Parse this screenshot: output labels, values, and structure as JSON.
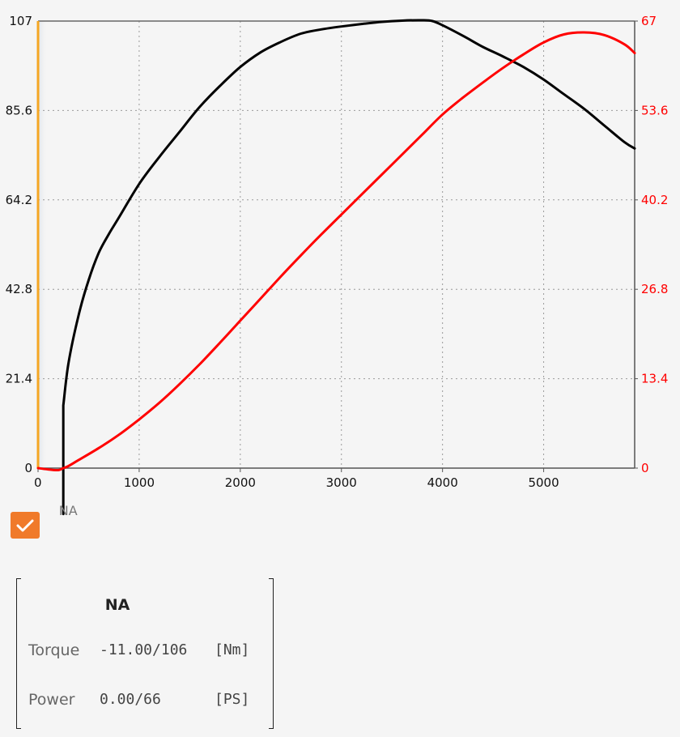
{
  "chart_data": {
    "type": "line",
    "title": "",
    "xlabel": "",
    "ylabel_left": "",
    "ylabel_right": "",
    "xlim": [
      0,
      5900
    ],
    "ylim_left": [
      0,
      107
    ],
    "ylim_right": [
      0,
      67
    ],
    "x_ticks": [
      "0",
      "1000",
      "2000",
      "3000",
      "4000",
      "5000"
    ],
    "y_ticks_left": [
      "0",
      "21.4",
      "42.8",
      "64.2",
      "85.6",
      "107"
    ],
    "y_ticks_right": [
      "0",
      "13.4",
      "26.8",
      "40.2",
      "53.6",
      "67"
    ],
    "grid": true,
    "marker": {
      "x": 250,
      "label": "NA"
    },
    "series": [
      {
        "axis": "left",
        "color": "#000000",
        "x": [
          250,
          250,
          300,
          400,
          500,
          600,
          700,
          800,
          1000,
          1200,
          1400,
          1600,
          1800,
          2000,
          2200,
          2400,
          2600,
          2800,
          3000,
          3200,
          3400,
          3600,
          3800,
          3900,
          4000,
          4200,
          4400,
          4600,
          4800,
          5000,
          5200,
          5400,
          5600,
          5800,
          5900
        ],
        "y": [
          -11,
          15,
          25,
          36.5,
          45,
          51.5,
          56,
          60,
          68,
          74.5,
          80.5,
          86.5,
          91.5,
          96,
          99.5,
          102,
          104,
          105,
          105.7,
          106.3,
          106.8,
          107.1,
          107.2,
          107,
          106,
          103.5,
          100.8,
          98.5,
          96,
          93,
          89.5,
          86,
          82,
          78,
          76.5
        ]
      },
      {
        "axis": "right",
        "color": "#ff0000",
        "x": [
          0,
          100,
          200,
          250,
          300,
          400,
          600,
          800,
          1000,
          1200,
          1400,
          1600,
          1800,
          2000,
          2200,
          2400,
          2600,
          2800,
          3000,
          3200,
          3400,
          3600,
          3800,
          4000,
          4200,
          4400,
          4600,
          4800,
          5000,
          5200,
          5400,
          5600,
          5800,
          5900
        ],
        "y": [
          0,
          -0.2,
          -0.3,
          0,
          0.3,
          1.2,
          3,
          5,
          7.3,
          9.8,
          12.6,
          15.6,
          18.8,
          22.1,
          25.4,
          28.7,
          31.9,
          35,
          38,
          41,
          44,
          47,
          50,
          53,
          55.5,
          57.8,
          60,
          62,
          63.8,
          65,
          65.3,
          64.9,
          63.5,
          62.2
        ]
      }
    ]
  },
  "checkbox": {
    "checked": true
  },
  "panel": {
    "title": "NA",
    "torque_label": "Torque",
    "torque_value": "-11.00/106",
    "torque_unit": "[Nm]",
    "power_label": "Power",
    "power_value": "0.00/66",
    "power_unit": "[PS]"
  }
}
